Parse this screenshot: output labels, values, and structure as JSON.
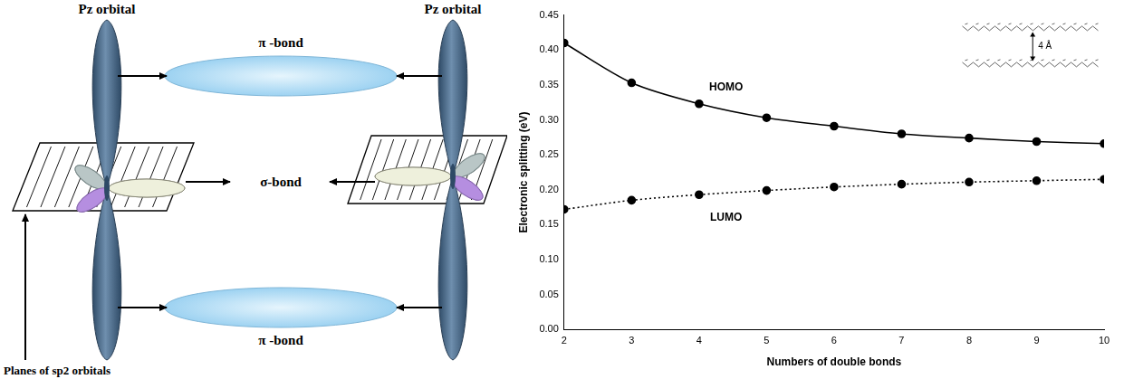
{
  "diagram": {
    "top_left_label": "Pz orbital",
    "top_right_label": "Pz orbital",
    "top_bond_label": "π -bond",
    "middle_bond_label": "σ-bond",
    "bottom_bond_label": "π -bond",
    "bottom_label": "Planes of  sp2 orbitals"
  },
  "chart_data": {
    "type": "line",
    "xlabel": "Numbers of double bonds",
    "ylabel": "Electronic splitting (eV)",
    "x": [
      2,
      3,
      4,
      5,
      6,
      7,
      8,
      9,
      10
    ],
    "series": [
      {
        "name": "HOMO",
        "color": "#000000",
        "line_style": "solid",
        "marker": "circle",
        "values": [
          0.41,
          0.353,
          0.323,
          0.303,
          0.291,
          0.28,
          0.274,
          0.269,
          0.266
        ]
      },
      {
        "name": "LUMO",
        "color": "#000000",
        "line_style": "dotted",
        "marker": "circle",
        "values": [
          0.172,
          0.185,
          0.193,
          0.199,
          0.204,
          0.208,
          0.211,
          0.213,
          0.215
        ]
      }
    ],
    "annotations": [
      {
        "text": "HOMO",
        "x": 4.4,
        "y": 0.347
      },
      {
        "text": "LUMO",
        "x": 4.4,
        "y": 0.16
      },
      {
        "text": "4 Å",
        "x": 9.05,
        "y": 0.405
      }
    ],
    "xlim": [
      2,
      10
    ],
    "xticks": [
      2,
      3,
      4,
      5,
      6,
      7,
      8,
      9,
      10
    ],
    "ylim": [
      0,
      0.45
    ],
    "yticks": [
      {
        "value": 0,
        "label": "0.00"
      },
      {
        "value": 0.05,
        "label": "0.05"
      },
      {
        "value": 0.1,
        "label": "0.10"
      },
      {
        "value": 0.15,
        "label": "0.15"
      },
      {
        "value": 0.2,
        "label": "0.20"
      },
      {
        "value": 0.25,
        "label": "0.25"
      },
      {
        "value": 0.3,
        "label": "0.30"
      },
      {
        "value": 0.35,
        "label": "0.35"
      },
      {
        "value": 0.4,
        "label": "0.40"
      },
      {
        "value": 0.45,
        "label": "0.45"
      }
    ],
    "grid": false
  }
}
